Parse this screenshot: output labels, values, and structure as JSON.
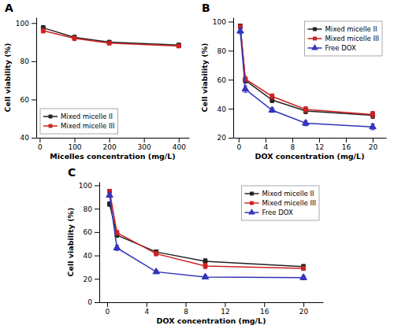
{
  "chart_data": [
    {
      "type": "line",
      "title": "A",
      "x_label": "Micelles concentration (mg/L)",
      "y_label": "Cell viability (%)",
      "x": [
        10,
        100,
        200,
        400
      ],
      "series": [
        {
          "name": "Mixed micelle II",
          "color": "#222222",
          "marker": "square",
          "values": [
            97.5,
            92.5,
            90.0,
            88.5
          ],
          "errors": [
            1.2,
            1.2,
            0.8,
            0.8
          ]
        },
        {
          "name": "Mixed micelle III",
          "color": "#cc2222",
          "marker": "square",
          "values": [
            96.0,
            92.0,
            89.5,
            88.0
          ],
          "errors": [
            1.2,
            1.2,
            0.8,
            0.8
          ]
        }
      ],
      "xlim": [
        -10,
        430
      ],
      "ylim": [
        40,
        103
      ],
      "xticks": [
        0,
        100,
        200,
        300,
        400
      ],
      "yticks": [
        40,
        60,
        80,
        100
      ],
      "legend": "lower left"
    },
    {
      "type": "line",
      "title": "B",
      "x_label": "DOX concentration (mg/L)",
      "y_label": "Cell viability (%)",
      "x": [
        0.25,
        1.0,
        5.0,
        10.0,
        20.0
      ],
      "series": [
        {
          "name": "Mixed micelle II",
          "color": "#222222",
          "marker": "square",
          "values": [
            97.0,
            59.5,
            46.0,
            38.5,
            35.5
          ],
          "errors": [
            1.2,
            1.8,
            1.8,
            2.0,
            2.2
          ]
        },
        {
          "name": "Mixed micelle III",
          "color": "#cc2222",
          "marker": "square",
          "values": [
            96.5,
            60.5,
            48.5,
            39.5,
            36.0
          ],
          "errors": [
            1.2,
            1.8,
            1.8,
            2.0,
            2.2
          ]
        },
        {
          "name": "Free DOX",
          "color": "#3333bb",
          "marker": "triangle",
          "values": [
            93.5,
            53.5,
            39.0,
            30.0,
            27.5
          ],
          "errors": [
            1.8,
            2.2,
            1.5,
            1.8,
            2.0
          ]
        }
      ],
      "xlim": [
        -0.8,
        22
      ],
      "ylim": [
        20,
        103
      ],
      "xticks": [
        0,
        4,
        8,
        12,
        16,
        20
      ],
      "yticks": [
        20,
        40,
        60,
        80,
        100
      ],
      "legend": "upper right"
    },
    {
      "type": "line",
      "title": "C",
      "x_label": "DOX concentration (mg/L)",
      "y_label": "Cell viability (%)",
      "x": [
        0.25,
        1.0,
        5.0,
        10.0,
        20.0
      ],
      "series": [
        {
          "name": "Mixed micelle II",
          "color": "#222222",
          "marker": "square",
          "values": [
            84.0,
            57.5,
            43.0,
            35.0,
            30.5
          ],
          "errors": [
            2.0,
            2.0,
            1.8,
            2.2,
            1.8
          ]
        },
        {
          "name": "Mixed micelle III",
          "color": "#cc2222",
          "marker": "square",
          "values": [
            95.0,
            59.5,
            41.5,
            31.0,
            29.0
          ],
          "errors": [
            1.5,
            2.0,
            1.8,
            2.2,
            1.8
          ]
        },
        {
          "name": "Free DOX",
          "color": "#3333bb",
          "marker": "triangle",
          "values": [
            91.5,
            46.5,
            26.0,
            21.5,
            21.0
          ],
          "errors": [
            1.8,
            2.2,
            1.2,
            1.5,
            1.8
          ]
        }
      ],
      "xlim": [
        -0.8,
        22
      ],
      "ylim": [
        0,
        103
      ],
      "xticks": [
        0,
        4,
        8,
        12,
        16,
        20
      ],
      "yticks": [
        0,
        20,
        40,
        60,
        80,
        100
      ],
      "legend": "upper right"
    }
  ]
}
